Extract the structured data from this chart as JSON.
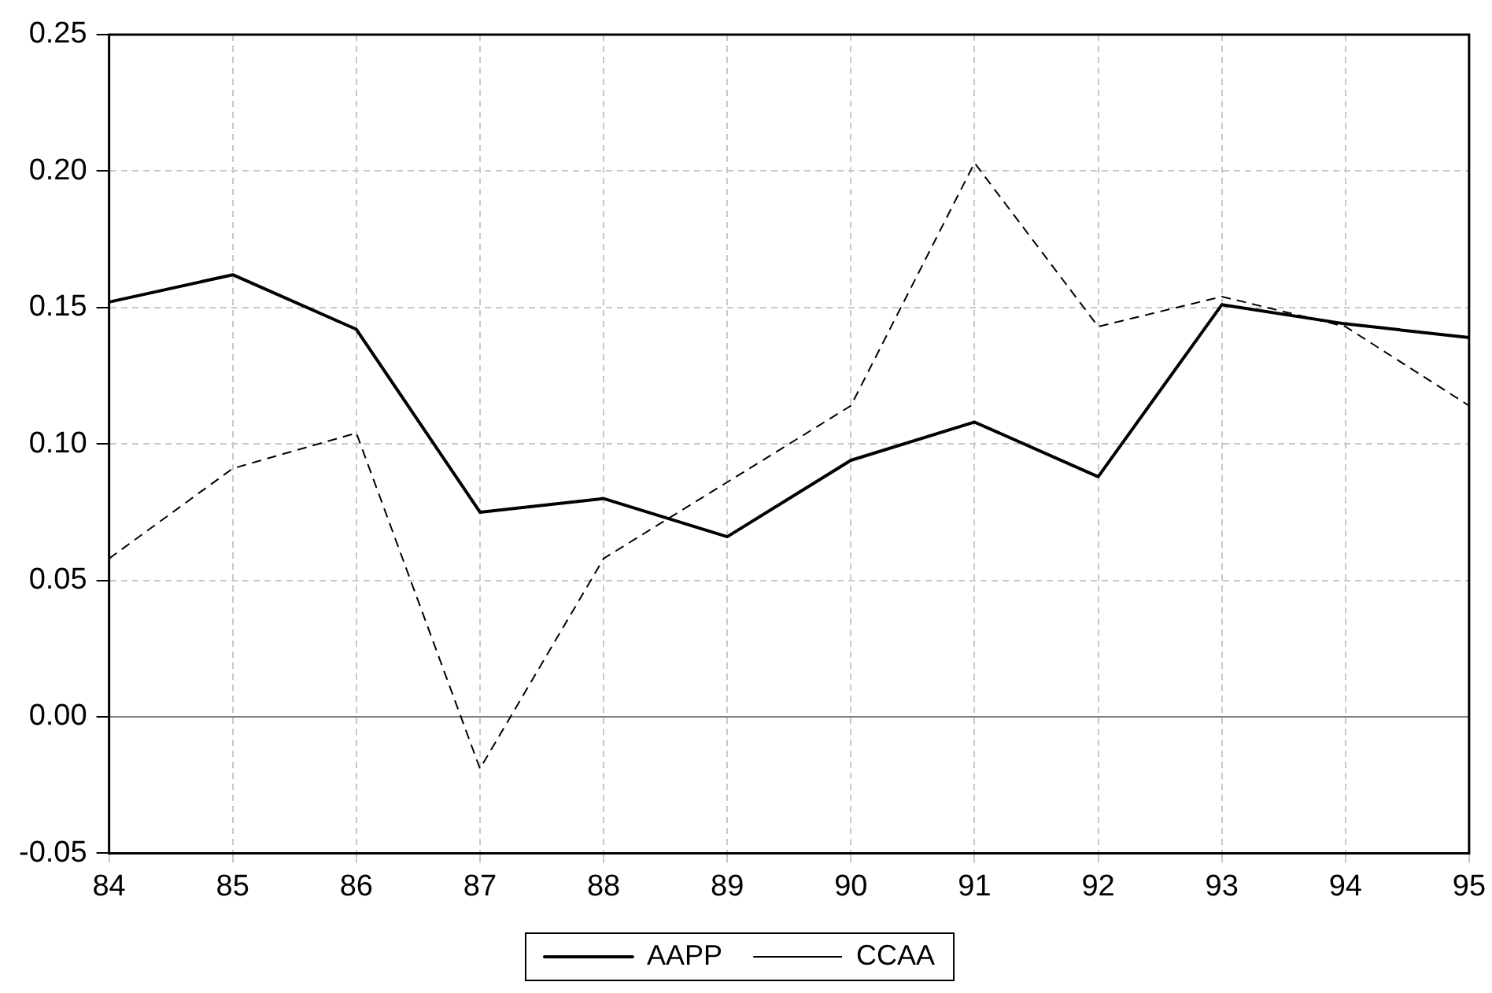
{
  "chart_data": {
    "type": "line",
    "categories": [
      "84",
      "85",
      "86",
      "87",
      "88",
      "89",
      "90",
      "91",
      "92",
      "93",
      "94",
      "95"
    ],
    "series": [
      {
        "name": "AAPP",
        "color": "#000000",
        "line_style": "solid",
        "values": [
          0.152,
          0.162,
          0.142,
          0.075,
          0.08,
          0.066,
          0.094,
          0.108,
          0.088,
          0.151,
          0.144,
          0.139
        ]
      },
      {
        "name": "CCAA",
        "color": "#000000",
        "line_style": "dashed",
        "values": [
          0.058,
          0.091,
          0.104,
          -0.019,
          0.058,
          0.086,
          0.114,
          0.203,
          0.143,
          0.154,
          0.143,
          0.114
        ]
      }
    ],
    "ylim": [
      -0.05,
      0.25
    ],
    "yticks": [
      {
        "value": -0.05,
        "label": "-0.05"
      },
      {
        "value": 0,
        "label": "0.00"
      },
      {
        "value": 0.05,
        "label": "0.05"
      },
      {
        "value": 0.1,
        "label": "0.10"
      },
      {
        "value": 0.15,
        "label": "0.15"
      },
      {
        "value": 0.2,
        "label": "0.20"
      },
      {
        "value": 0.25,
        "label": "0.25"
      }
    ],
    "ref_lines": [
      {
        "axis": "y",
        "value": 0,
        "color": "#808080"
      }
    ],
    "grid": true,
    "legend": "bottom",
    "marker": "none"
  }
}
